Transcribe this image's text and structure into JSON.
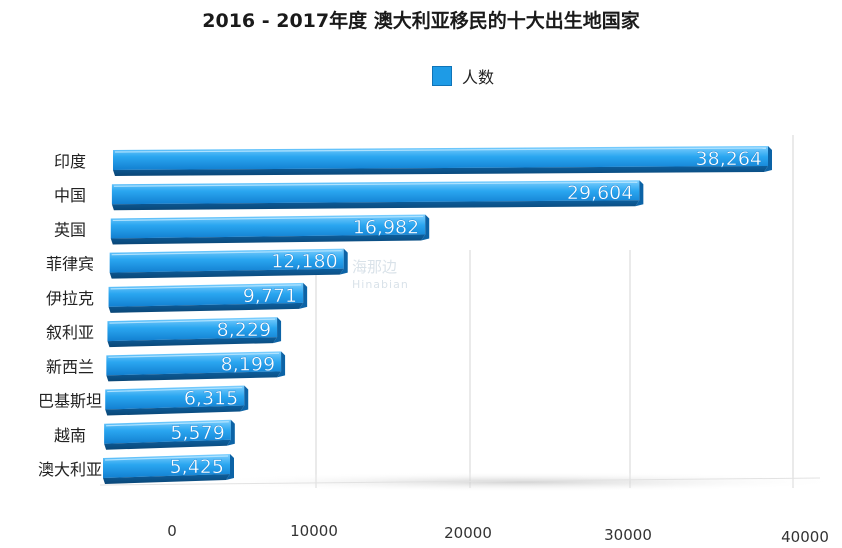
{
  "chart_data": {
    "type": "bar",
    "orientation": "horizontal",
    "title": "2016 - 2017年度 澳大利亚移民的十大出生地国家",
    "categories": [
      "印度",
      "中国",
      "英国",
      "菲律宾",
      "伊拉克",
      "叙利亚",
      "新西兰",
      "巴基斯坦",
      "越南",
      "澳大利亚"
    ],
    "series": [
      {
        "name": "人数",
        "values": [
          38264,
          29604,
          16982,
          12180,
          9771,
          8229,
          8199,
          6315,
          5579,
          5425
        ],
        "value_labels": [
          "38,264",
          "29,604",
          "16,982",
          "12,180",
          "9,771",
          "8,229",
          "8,199",
          "6,315",
          "5,579",
          "5,425"
        ],
        "color": "#1e9be6"
      }
    ],
    "x_ticks": [
      "0",
      "10000",
      "20000",
      "30000",
      "40000"
    ],
    "xlim": [
      0,
      40000
    ],
    "grid": true,
    "legend_position": "top-center"
  },
  "watermark": {
    "text": "海那边",
    "latin": "Hinabian"
  }
}
